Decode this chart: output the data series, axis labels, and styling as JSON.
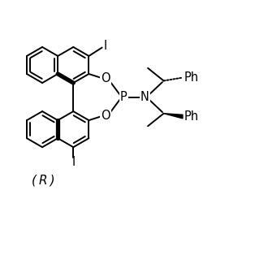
{
  "bg_color": "#ffffff",
  "lw": 1.4,
  "blw": 3.8,
  "figsize": [
    3.3,
    3.3
  ],
  "dpi": 100,
  "xlim": [
    0,
    10
  ],
  "ylim": [
    0,
    10
  ],
  "label_fs": 10.5,
  "r_label": "( R )"
}
